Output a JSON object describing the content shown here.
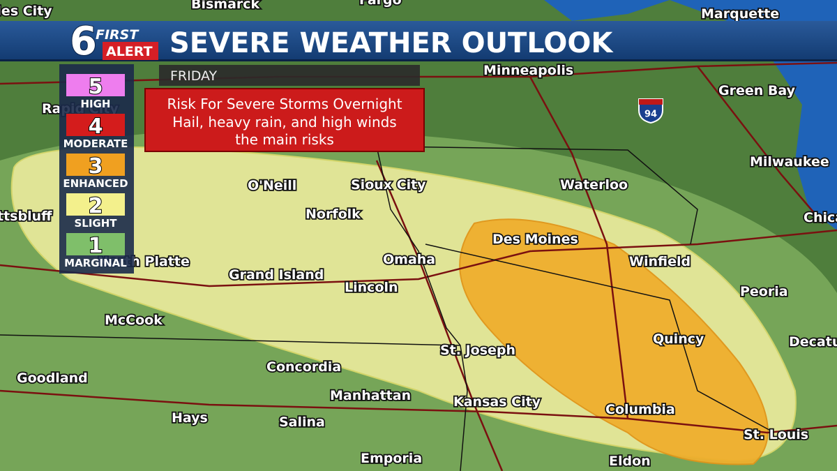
{
  "header": {
    "logo_number": "6",
    "logo_top": "FIRST",
    "logo_bottom": "ALERT",
    "title": "SEVERE WEATHER OUTLOOK"
  },
  "day": "FRIDAY",
  "alert": {
    "lines": [
      "Risk For Severe Storms Overnight",
      "Hail, heavy rain, and high winds",
      "the main risks"
    ]
  },
  "legend": [
    {
      "level": "5",
      "label": "HIGH"
    },
    {
      "level": "4",
      "label": "MODERATE"
    },
    {
      "level": "3",
      "label": "ENHANCED"
    },
    {
      "level": "2",
      "label": "SLIGHT"
    },
    {
      "level": "1",
      "label": "MARGINAL"
    }
  ],
  "highway": "94",
  "cities": [
    "Miles City",
    "Bismarck",
    "Fargo",
    "Marquette",
    "Minneapolis",
    "Green Bay",
    "Rapid City",
    "Scottsbluff",
    "North Platte",
    "O'Neill",
    "Sioux City",
    "Waterloo",
    "Milwaukee",
    "Chicago",
    "Norfolk",
    "Des Moines",
    "Omaha",
    "Winfield",
    "Grand Island",
    "Lincoln",
    "Peoria",
    "McCook",
    "Quincy",
    "Decatur",
    "St. Joseph",
    "Concordia",
    "Goodland",
    "Manhattan",
    "Kansas City",
    "Columbia",
    "Hays",
    "Salina",
    "St. Louis",
    "Emporia",
    "Eldon"
  ]
}
